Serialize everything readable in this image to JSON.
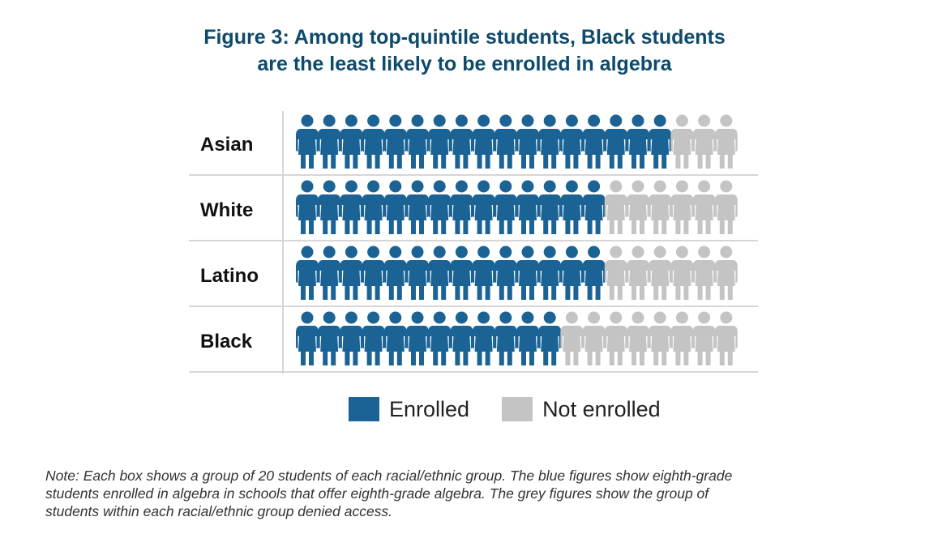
{
  "title": {
    "line1": "Figure 3: Among top-quintile students, Black students",
    "line2": "are the least likely to be enrolled in algebra"
  },
  "colors": {
    "enrolled": "#1b6395",
    "not_enrolled": "#c4c4c4",
    "title": "#0d4a6b",
    "gridline": "#d6d6d6"
  },
  "icon": "person-icon",
  "chart_data": {
    "type": "pictograph",
    "group_size": 20,
    "categories": [
      "Asian",
      "White",
      "Latino",
      "Black"
    ],
    "series": [
      {
        "name": "Enrolled",
        "values": [
          17,
          14,
          14,
          12
        ]
      },
      {
        "name": "Not enrolled",
        "values": [
          3,
          6,
          6,
          8
        ]
      }
    ],
    "legend_position": "bottom"
  },
  "legend": {
    "enrolled_label": "Enrolled",
    "not_enrolled_label": "Not enrolled"
  },
  "note": {
    "line1": "Note: Each box shows a group of 20 students of each racial/ethnic group. The blue figures show eighth-grade",
    "line2": "students enrolled in algebra in schools that offer eighth-grade algebra. The grey figures show the group of",
    "line3": "students within each racial/ethnic group denied access."
  }
}
